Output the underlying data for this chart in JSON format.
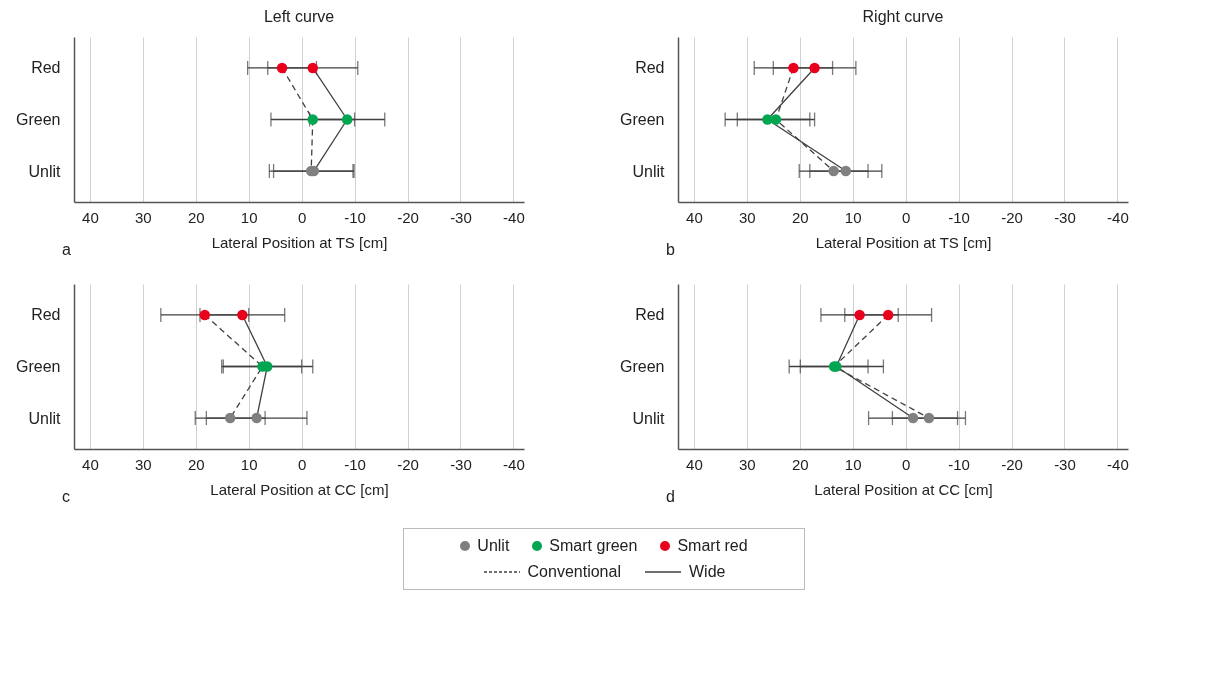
{
  "chart_data": [
    {
      "type": "line",
      "orientation": "horizontal",
      "title": "Left curve",
      "xlabel": "Lateral Position at TS [cm]",
      "categories": [
        "Red",
        "Green",
        "Unlit"
      ],
      "xlim": [
        43,
        -42
      ],
      "xticks": [
        40,
        30,
        20,
        10,
        0,
        -10,
        -20,
        -30,
        -40
      ],
      "grid": "x",
      "marker": "circle",
      "legend": "bottom",
      "annotations": [
        "a"
      ],
      "series": [
        {
          "name": "Conventional",
          "color": "#404040",
          "line_style": "dashed",
          "colors": [
            "#e8001c",
            "#00a650",
            "#808080"
          ],
          "values": [
            3.7,
            -2.1,
            -1.8
          ],
          "errors": [
            6.5,
            7.9,
            7.9
          ]
        },
        {
          "name": "Wide",
          "color": "#404040",
          "line_style": "solid",
          "colors": [
            "#e8001c",
            "#00a650",
            "#808080"
          ],
          "values": [
            -2.1,
            -8.6,
            -2.3
          ],
          "errors": [
            8.5,
            7.1,
            7.6
          ]
        }
      ]
    },
    {
      "type": "line",
      "orientation": "horizontal",
      "title": "Right curve",
      "xlabel": "Lateral Position at TS [cm]",
      "categories": [
        "Red",
        "Green",
        "Unlit"
      ],
      "xlim": [
        43,
        -42
      ],
      "xticks": [
        40,
        30,
        20,
        10,
        0,
        -10,
        -20,
        -30,
        -40
      ],
      "grid": "x",
      "marker": "circle",
      "annotations": [
        "b"
      ],
      "series": [
        {
          "color": "#404040",
          "line_style": "dashed",
          "colors": [
            "#e8001c",
            "#00a650",
            "#808080"
          ],
          "values": [
            21.2,
            24.5,
            13.6
          ],
          "errors": [
            7.4,
            7.3,
            6.5
          ]
        },
        {
          "color": "#404040",
          "line_style": "solid",
          "colors": [
            "#e8001c",
            "#00a650",
            "#808080"
          ],
          "values": [
            17.2,
            26.1,
            11.3
          ],
          "errors": [
            7.8,
            8,
            6.8
          ]
        }
      ]
    },
    {
      "type": "line",
      "orientation": "horizontal",
      "xlabel": "Lateral Position at CC [cm]",
      "categories": [
        "Red",
        "Green",
        "Unlit"
      ],
      "xlim": [
        43,
        -42
      ],
      "xticks": [
        40,
        30,
        20,
        10,
        0,
        -10,
        -20,
        -30,
        -40
      ],
      "grid": "x",
      "marker": "circle",
      "annotations": [
        "c"
      ],
      "series": [
        {
          "color": "#404040",
          "line_style": "dashed",
          "colors": [
            "#e8001c",
            "#00a650",
            "#808080"
          ],
          "values": [
            18.3,
            7.4,
            13.5
          ],
          "errors": [
            8.3,
            7.4,
            6.6
          ]
        },
        {
          "color": "#404040",
          "line_style": "solid",
          "colors": [
            "#e8001c",
            "#00a650",
            "#808080"
          ],
          "values": [
            11.2,
            6.5,
            8.5
          ],
          "errors": [
            8,
            8.6,
            9.5
          ]
        }
      ]
    },
    {
      "type": "line",
      "orientation": "horizontal",
      "xlabel": "Lateral Position at CC [cm]",
      "categories": [
        "Red",
        "Green",
        "Unlit"
      ],
      "xlim": [
        43,
        -42
      ],
      "xticks": [
        40,
        30,
        20,
        10,
        0,
        -10,
        -20,
        -30,
        -40
      ],
      "grid": "x",
      "marker": "circle",
      "annotations": [
        "d"
      ],
      "series": [
        {
          "color": "#404040",
          "line_style": "dashed",
          "colors": [
            "#e8001c",
            "#00a650",
            "#808080"
          ],
          "values": [
            3.3,
            13.5,
            -4.4
          ],
          "errors": [
            8.2,
            6.4,
            6.9
          ]
        },
        {
          "color": "#404040",
          "line_style": "solid",
          "colors": [
            "#e8001c",
            "#00a650",
            "#808080"
          ],
          "values": [
            8.7,
            13.1,
            -1.4
          ],
          "errors": [
            7.3,
            8.9,
            8.4
          ]
        }
      ]
    },
    {
      "type": "other",
      "categories": [
        "Unlit",
        "Smart green",
        "Smart red"
      ],
      "colors": [
        "#808080",
        "#00a650",
        "#e8001c"
      ]
    }
  ]
}
